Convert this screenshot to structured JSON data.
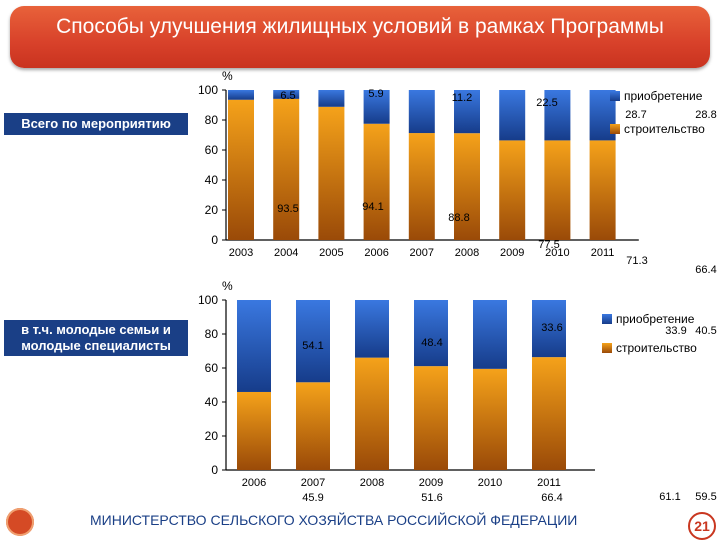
{
  "title": "Способы улучшения жилищных условий в рамках Программы",
  "footer": "МИНИСТЕРСТВО СЕЛЬСКОГО ХОЗЯЙСТВА РОССИЙСКОЙ ФЕДЕРАЦИИ",
  "page_number": "21",
  "colors": {
    "banner": "#d8412a",
    "purchase": "#1f4fa8",
    "construction": "#e08a10",
    "label_box": "#1a3f86"
  },
  "chart_data": [
    {
      "type": "bar",
      "label": "Всего по мероприятию",
      "unit": "%",
      "categories": [
        "2003",
        "2004",
        "2005",
        "2006",
        "2007",
        "2008",
        "2009",
        "2010",
        "2011"
      ],
      "yticks": [
        "0",
        "20",
        "40",
        "60",
        "80",
        "100"
      ],
      "ylim": [
        0,
        100
      ],
      "series": [
        {
          "name": "приобретение",
          "values": [
            6.5,
            5.9,
            11.2,
            22.5,
            28.7,
            28.8,
            33.6,
            33.6,
            33.6
          ]
        },
        {
          "name": "строительство",
          "values": [
            93.5,
            94.1,
            88.8,
            77.5,
            71.3,
            71.2,
            66.4,
            66.4,
            66.4
          ]
        }
      ],
      "labels": [
        {
          "text": "6.5"
        },
        {
          "text": "5.9"
        },
        {
          "text": "11.2"
        },
        {
          "text": "22.5"
        },
        {
          "text": "28.7"
        },
        {
          "text": "28.8"
        },
        {
          "text": "93.5"
        },
        {
          "text": "94.1"
        },
        {
          "text": "88.8"
        },
        {
          "text": "77.5"
        },
        {
          "text": "71.3"
        },
        {
          "text": "66.4"
        }
      ],
      "legend": [
        "приобретение",
        "строительство"
      ]
    },
    {
      "type": "bar",
      "label": "в т.ч. молодые семьи и молодые специалисты",
      "unit": "%",
      "categories": [
        "2006",
        "2007",
        "2008",
        "2009",
        "2010",
        "2011"
      ],
      "yticks": [
        "0",
        "20",
        "40",
        "60",
        "80",
        "100"
      ],
      "ylim": [
        0,
        100
      ],
      "series": [
        {
          "name": "приобретение",
          "values": [
            54.1,
            48.4,
            33.9,
            38.9,
            40.5,
            33.6
          ]
        },
        {
          "name": "строительство",
          "values": [
            45.9,
            51.6,
            66.1,
            61.1,
            59.5,
            66.4
          ]
        }
      ],
      "labels": [
        {
          "text": "54.1"
        },
        {
          "text": "48.4"
        },
        {
          "text": "33.6"
        },
        {
          "text": "33.9"
        },
        {
          "text": "40.5"
        },
        {
          "text": "45.9"
        },
        {
          "text": "51.6"
        },
        {
          "text": "66.4"
        },
        {
          "text": "61.1"
        },
        {
          "text": "59.5"
        }
      ],
      "legend": [
        "приобретение",
        "строительство"
      ]
    }
  ]
}
